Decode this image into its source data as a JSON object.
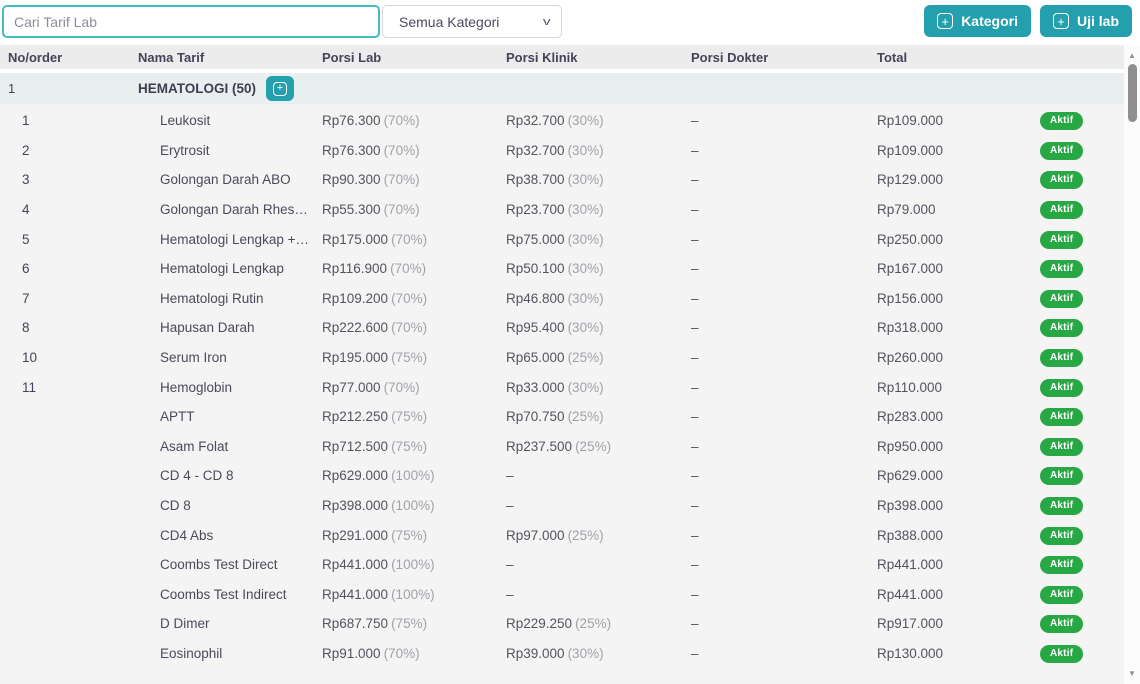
{
  "colors": {
    "accent": "#239fae",
    "badge_green": "#28a745"
  },
  "topbar": {
    "search_placeholder": "Cari Tarif Lab",
    "category_select_value": "Semua Kategori",
    "chevron_icon": "v",
    "plus_icon": "+",
    "kategori_button_label": "Kategori",
    "uji_lab_button_label": "Uji lab"
  },
  "table": {
    "headers": [
      "No/order",
      "Nama Tarif",
      "Porsi Lab",
      "Porsi Klinik",
      "Porsi Dokter",
      "Total"
    ],
    "category_row": {
      "no": "1",
      "name": "HEMATOLOGI (50)",
      "expand_icon": "+"
    },
    "rows": [
      {
        "no": "1",
        "name": "Leukosit",
        "porsi_lab": "Rp76.300",
        "porsi_lab_pct": "(70%)",
        "porsi_klinik": "Rp32.700",
        "porsi_klinik_pct": "(30%)",
        "porsi_dokter": "–",
        "total": "Rp109.000",
        "status": "Aktif"
      },
      {
        "no": "2",
        "name": "Erytrosit",
        "porsi_lab": "Rp76.300",
        "porsi_lab_pct": "(70%)",
        "porsi_klinik": "Rp32.700",
        "porsi_klinik_pct": "(30%)",
        "porsi_dokter": "–",
        "total": "Rp109.000",
        "status": "Aktif"
      },
      {
        "no": "3",
        "name": "Golongan Darah ABO",
        "porsi_lab": "Rp90.300",
        "porsi_lab_pct": "(70%)",
        "porsi_klinik": "Rp38.700",
        "porsi_klinik_pct": "(30%)",
        "porsi_dokter": "–",
        "total": "Rp129.000",
        "status": "Aktif"
      },
      {
        "no": "4",
        "name": "Golongan Darah Rhes…",
        "porsi_lab": "Rp55.300",
        "porsi_lab_pct": "(70%)",
        "porsi_klinik": "Rp23.700",
        "porsi_klinik_pct": "(30%)",
        "porsi_dokter": "–",
        "total": "Rp79.000",
        "status": "Aktif"
      },
      {
        "no": "5",
        "name": "Hematologi Lengkap +…",
        "porsi_lab": "Rp175.000",
        "porsi_lab_pct": "(70%)",
        "porsi_klinik": "Rp75.000",
        "porsi_klinik_pct": "(30%)",
        "porsi_dokter": "–",
        "total": "Rp250.000",
        "status": "Aktif"
      },
      {
        "no": "6",
        "name": "Hematologi Lengkap",
        "porsi_lab": "Rp116.900",
        "porsi_lab_pct": "(70%)",
        "porsi_klinik": "Rp50.100",
        "porsi_klinik_pct": "(30%)",
        "porsi_dokter": "–",
        "total": "Rp167.000",
        "status": "Aktif"
      },
      {
        "no": "7",
        "name": "Hematologi Rutin",
        "porsi_lab": "Rp109.200",
        "porsi_lab_pct": "(70%)",
        "porsi_klinik": "Rp46.800",
        "porsi_klinik_pct": "(30%)",
        "porsi_dokter": "–",
        "total": "Rp156.000",
        "status": "Aktif"
      },
      {
        "no": "8",
        "name": "Hapusan Darah",
        "porsi_lab": "Rp222.600",
        "porsi_lab_pct": "(70%)",
        "porsi_klinik": "Rp95.400",
        "porsi_klinik_pct": "(30%)",
        "porsi_dokter": "–",
        "total": "Rp318.000",
        "status": "Aktif"
      },
      {
        "no": "10",
        "name": "Serum Iron",
        "porsi_lab": "Rp195.000",
        "porsi_lab_pct": "(75%)",
        "porsi_klinik": "Rp65.000",
        "porsi_klinik_pct": "(25%)",
        "porsi_dokter": "–",
        "total": "Rp260.000",
        "status": "Aktif"
      },
      {
        "no": "11",
        "name": "Hemoglobin",
        "porsi_lab": "Rp77.000",
        "porsi_lab_pct": "(70%)",
        "porsi_klinik": "Rp33.000",
        "porsi_klinik_pct": "(30%)",
        "porsi_dokter": "–",
        "total": "Rp110.000",
        "status": "Aktif"
      },
      {
        "no": "",
        "name": "APTT",
        "porsi_lab": "Rp212.250",
        "porsi_lab_pct": "(75%)",
        "porsi_klinik": "Rp70.750",
        "porsi_klinik_pct": "(25%)",
        "porsi_dokter": "–",
        "total": "Rp283.000",
        "status": "Aktif"
      },
      {
        "no": "",
        "name": "Asam Folat",
        "porsi_lab": "Rp712.500",
        "porsi_lab_pct": "(75%)",
        "porsi_klinik": "Rp237.500",
        "porsi_klinik_pct": "(25%)",
        "porsi_dokter": "–",
        "total": "Rp950.000",
        "status": "Aktif"
      },
      {
        "no": "",
        "name": "CD 4 - CD 8",
        "porsi_lab": "Rp629.000",
        "porsi_lab_pct": "(100%)",
        "porsi_klinik": "–",
        "porsi_klinik_pct": "",
        "porsi_dokter": "–",
        "total": "Rp629.000",
        "status": "Aktif"
      },
      {
        "no": "",
        "name": "CD 8",
        "porsi_lab": "Rp398.000",
        "porsi_lab_pct": "(100%)",
        "porsi_klinik": "–",
        "porsi_klinik_pct": "",
        "porsi_dokter": "–",
        "total": "Rp398.000",
        "status": "Aktif"
      },
      {
        "no": "",
        "name": "CD4 Abs",
        "porsi_lab": "Rp291.000",
        "porsi_lab_pct": "(75%)",
        "porsi_klinik": "Rp97.000",
        "porsi_klinik_pct": "(25%)",
        "porsi_dokter": "–",
        "total": "Rp388.000",
        "status": "Aktif"
      },
      {
        "no": "",
        "name": "Coombs Test Direct",
        "porsi_lab": "Rp441.000",
        "porsi_lab_pct": "(100%)",
        "porsi_klinik": "–",
        "porsi_klinik_pct": "",
        "porsi_dokter": "–",
        "total": "Rp441.000",
        "status": "Aktif"
      },
      {
        "no": "",
        "name": "Coombs Test Indirect",
        "porsi_lab": "Rp441.000",
        "porsi_lab_pct": "(100%)",
        "porsi_klinik": "–",
        "porsi_klinik_pct": "",
        "porsi_dokter": "–",
        "total": "Rp441.000",
        "status": "Aktif"
      },
      {
        "no": "",
        "name": "D Dimer",
        "porsi_lab": "Rp687.750",
        "porsi_lab_pct": "(75%)",
        "porsi_klinik": "Rp229.250",
        "porsi_klinik_pct": "(25%)",
        "porsi_dokter": "–",
        "total": "Rp917.000",
        "status": "Aktif"
      },
      {
        "no": "",
        "name": "Eosinophil",
        "porsi_lab": "Rp91.000",
        "porsi_lab_pct": "(70%)",
        "porsi_klinik": "Rp39.000",
        "porsi_klinik_pct": "(30%)",
        "porsi_dokter": "–",
        "total": "Rp130.000",
        "status": "Aktif"
      }
    ]
  },
  "scrollbar": {
    "up_icon": "▲",
    "down_icon": "▼"
  }
}
